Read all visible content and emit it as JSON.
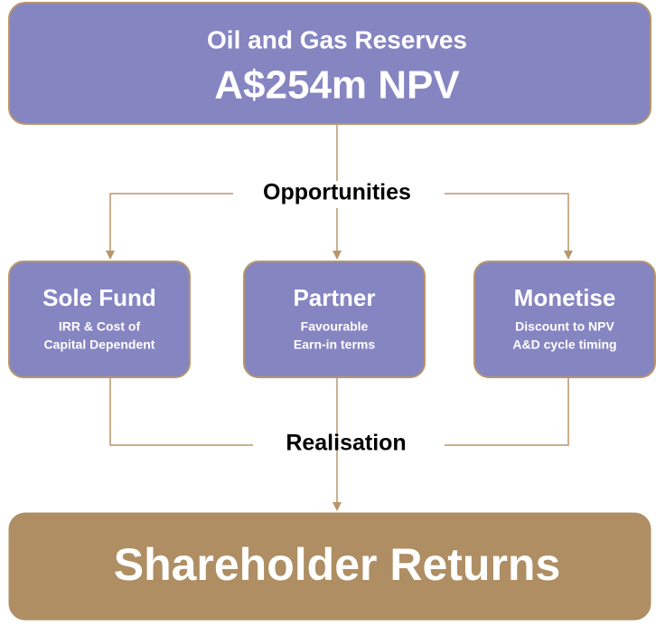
{
  "top": {
    "title": "Oil and Gas Reserves",
    "value": "A$254m NPV"
  },
  "connectors": {
    "upper": "Opportunities",
    "lower": "Realisation"
  },
  "options": [
    {
      "title": "Sole Fund",
      "lines": [
        "IRR & Cost of",
        "Capital Dependent"
      ]
    },
    {
      "title": "Partner",
      "lines": [
        "Favourable",
        "Earn-in terms"
      ]
    },
    {
      "title": "Monetise",
      "lines": [
        "Discount to NPV",
        "A&D cycle timing"
      ]
    }
  ],
  "bottom": {
    "title": "Shareholder Returns"
  }
}
